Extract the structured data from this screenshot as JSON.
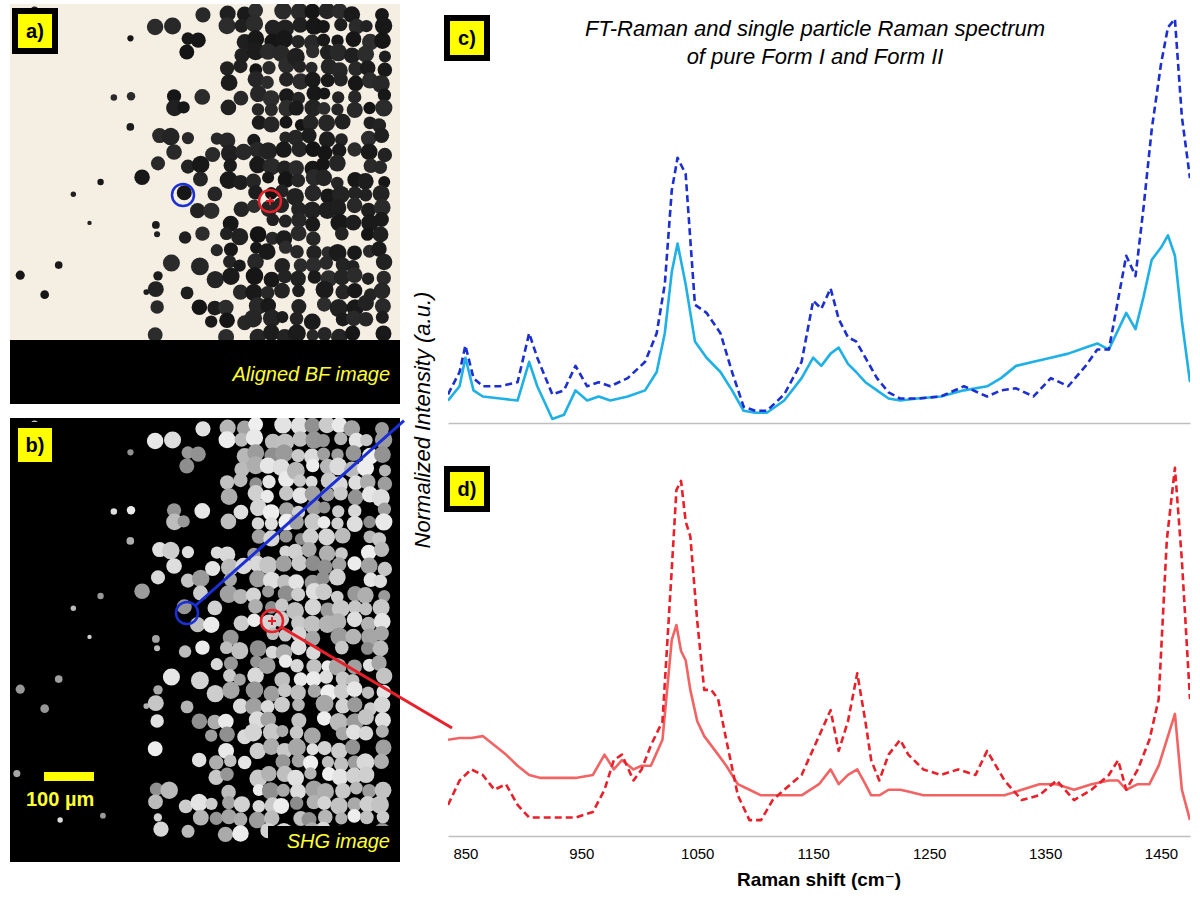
{
  "images": [
    {
      "panel_label": "a)",
      "caption": "Aligned BF image"
    },
    {
      "panel_label": "b)",
      "caption": "SHG image",
      "scale_bar": "100 µm"
    }
  ],
  "chart_data": [
    {
      "type": "line",
      "panel_label": "c)",
      "title": "FT-Raman and single particle Raman spectrum of pure Form I and Form II",
      "y_label": "Normalized Intensity (a.u.)",
      "xlim": [
        835,
        1475
      ],
      "ylim": [
        0,
        1
      ],
      "tick_labels": false,
      "x": [
        835,
        845,
        850,
        857,
        865,
        880,
        895,
        905,
        912,
        925,
        935,
        945,
        955,
        965,
        975,
        990,
        1005,
        1015,
        1022,
        1028,
        1033,
        1040,
        1048,
        1058,
        1070,
        1080,
        1090,
        1100,
        1110,
        1125,
        1140,
        1150,
        1157,
        1165,
        1172,
        1180,
        1187,
        1195,
        1205,
        1215,
        1225,
        1240,
        1260,
        1280,
        1300,
        1312,
        1325,
        1340,
        1355,
        1370,
        1385,
        1395,
        1405,
        1420,
        1428,
        1435,
        1442,
        1450,
        1456,
        1462,
        1468,
        1475
      ],
      "series": [
        {
          "color": "#1fb0e6",
          "line_style": "solid",
          "values": [
            0.055,
            0.09,
            0.16,
            0.08,
            0.065,
            0.06,
            0.055,
            0.15,
            0.09,
            0.01,
            0.02,
            0.08,
            0.055,
            0.065,
            0.055,
            0.065,
            0.08,
            0.125,
            0.22,
            0.37,
            0.44,
            0.34,
            0.2,
            0.16,
            0.125,
            0.08,
            0.03,
            0.025,
            0.025,
            0.055,
            0.11,
            0.16,
            0.14,
            0.17,
            0.185,
            0.145,
            0.125,
            0.1,
            0.08,
            0.06,
            0.055,
            0.06,
            0.065,
            0.08,
            0.09,
            0.11,
            0.14,
            0.15,
            0.16,
            0.17,
            0.185,
            0.195,
            0.18,
            0.27,
            0.23,
            0.31,
            0.4,
            0.43,
            0.46,
            0.41,
            0.25,
            0.1
          ]
        },
        {
          "color": "#1c2fd0",
          "line_style": "dashed",
          "values": [
            0.07,
            0.125,
            0.19,
            0.11,
            0.09,
            0.09,
            0.1,
            0.22,
            0.16,
            0.07,
            0.08,
            0.14,
            0.09,
            0.1,
            0.09,
            0.11,
            0.15,
            0.22,
            0.34,
            0.57,
            0.65,
            0.61,
            0.29,
            0.27,
            0.22,
            0.125,
            0.04,
            0.03,
            0.03,
            0.07,
            0.15,
            0.3,
            0.28,
            0.33,
            0.255,
            0.21,
            0.2,
            0.16,
            0.11,
            0.075,
            0.06,
            0.06,
            0.065,
            0.09,
            0.065,
            0.08,
            0.085,
            0.065,
            0.11,
            0.09,
            0.14,
            0.18,
            0.18,
            0.41,
            0.36,
            0.53,
            0.72,
            0.88,
            0.97,
            0.99,
            0.75,
            0.6
          ]
        }
      ]
    },
    {
      "type": "line",
      "panel_label": "d)",
      "x_label": "Raman shift (cm⁻)",
      "xlim": [
        835,
        1475
      ],
      "ylim": [
        0,
        1
      ],
      "tick_labels": "x",
      "xticks": [
        850,
        950,
        1050,
        1150,
        1250,
        1350,
        1450
      ],
      "x": [
        835,
        845,
        855,
        865,
        875,
        885,
        895,
        905,
        915,
        930,
        945,
        960,
        970,
        978,
        985,
        995,
        1002,
        1010,
        1020,
        1028,
        1032,
        1036,
        1040,
        1044,
        1050,
        1056,
        1062,
        1068,
        1075,
        1085,
        1095,
        1105,
        1115,
        1125,
        1140,
        1155,
        1165,
        1172,
        1180,
        1188,
        1195,
        1200,
        1207,
        1215,
        1225,
        1232,
        1245,
        1260,
        1275,
        1290,
        1300,
        1315,
        1330,
        1345,
        1360,
        1375,
        1390,
        1405,
        1413,
        1420,
        1430,
        1440,
        1448,
        1455,
        1462,
        1468,
        1475
      ],
      "series": [
        {
          "color": "#f26464",
          "line_style": "solid",
          "values": [
            0.26,
            0.265,
            0.265,
            0.27,
            0.245,
            0.22,
            0.19,
            0.165,
            0.157,
            0.157,
            0.157,
            0.165,
            0.22,
            0.18,
            0.205,
            0.18,
            0.19,
            0.19,
            0.26,
            0.53,
            0.57,
            0.5,
            0.475,
            0.395,
            0.31,
            0.27,
            0.245,
            0.22,
            0.19,
            0.14,
            0.125,
            0.11,
            0.11,
            0.11,
            0.11,
            0.14,
            0.18,
            0.14,
            0.165,
            0.18,
            0.14,
            0.11,
            0.11,
            0.125,
            0.125,
            0.12,
            0.11,
            0.11,
            0.11,
            0.11,
            0.11,
            0.11,
            0.125,
            0.14,
            0.14,
            0.125,
            0.14,
            0.15,
            0.15,
            0.125,
            0.14,
            0.14,
            0.19,
            0.26,
            0.33,
            0.125,
            0.043
          ]
        },
        {
          "color": "#e8202a",
          "line_style": "dashed",
          "values": [
            0.084,
            0.15,
            0.18,
            0.165,
            0.125,
            0.14,
            0.084,
            0.05,
            0.05,
            0.05,
            0.05,
            0.065,
            0.125,
            0.205,
            0.22,
            0.15,
            0.18,
            0.245,
            0.31,
            0.72,
            0.935,
            0.96,
            0.85,
            0.81,
            0.58,
            0.395,
            0.395,
            0.37,
            0.26,
            0.11,
            0.043,
            0.043,
            0.097,
            0.125,
            0.165,
            0.27,
            0.34,
            0.23,
            0.31,
            0.44,
            0.31,
            0.205,
            0.15,
            0.22,
            0.26,
            0.22,
            0.18,
            0.165,
            0.18,
            0.165,
            0.23,
            0.15,
            0.097,
            0.11,
            0.15,
            0.097,
            0.125,
            0.165,
            0.205,
            0.125,
            0.18,
            0.26,
            0.37,
            0.8,
            0.995,
            0.745,
            0.37
          ]
        }
      ]
    }
  ]
}
